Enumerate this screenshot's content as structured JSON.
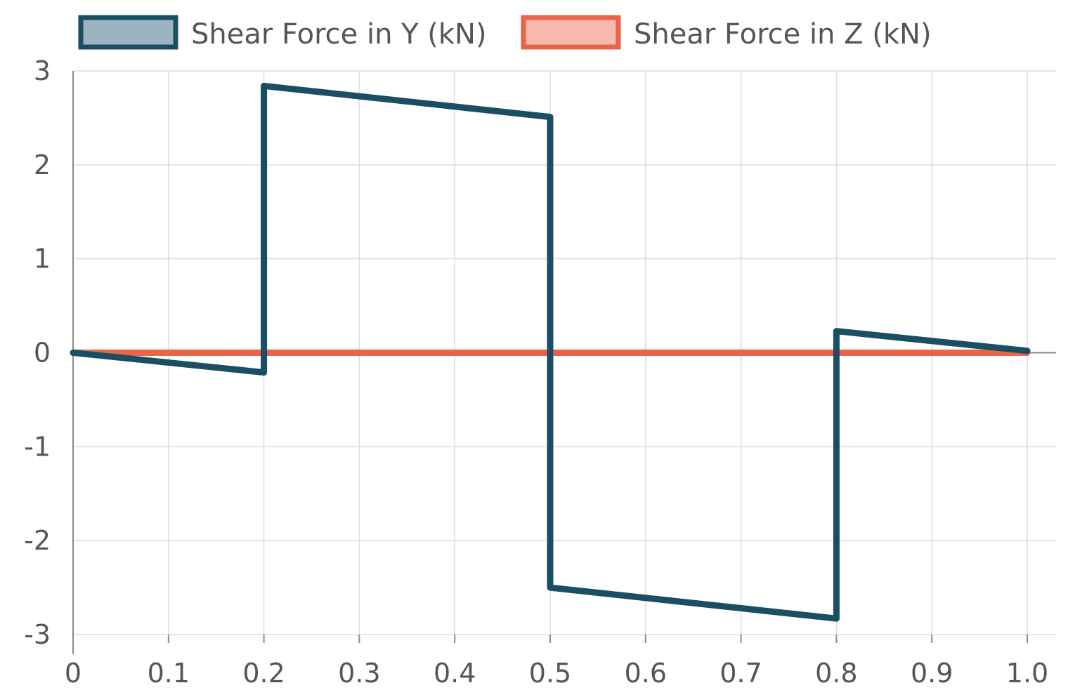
{
  "colors": {
    "series_y_stroke": "#1a4e63",
    "series_y_fill": "#9bb4c2",
    "series_z_stroke": "#e8654a",
    "series_z_fill": "#f8b8ab",
    "grid": "#dcdcdc",
    "axis": "#8a8a8a",
    "tick_text": "#555555"
  },
  "chart_data": {
    "type": "line",
    "title": "",
    "xlabel": "",
    "ylabel": "",
    "xlim": [
      0,
      1.0
    ],
    "ylim": [
      -3,
      3
    ],
    "grid": true,
    "legend_position": "top",
    "x_ticks": [
      {
        "value": 0,
        "label": "0"
      },
      {
        "value": 0.1,
        "label": "0.1"
      },
      {
        "value": 0.2,
        "label": "0.2"
      },
      {
        "value": 0.3,
        "label": "0.3"
      },
      {
        "value": 0.4,
        "label": "0.4"
      },
      {
        "value": 0.5,
        "label": "0.5"
      },
      {
        "value": 0.6,
        "label": "0.6"
      },
      {
        "value": 0.7,
        "label": "0.7"
      },
      {
        "value": 0.8,
        "label": "0.8"
      },
      {
        "value": 0.9,
        "label": "0.9"
      },
      {
        "value": 1.0,
        "label": "1.0"
      }
    ],
    "y_ticks": [
      {
        "value": 3,
        "label": "3"
      },
      {
        "value": 2,
        "label": "2"
      },
      {
        "value": 1,
        "label": "1"
      },
      {
        "value": 0,
        "label": "0"
      },
      {
        "value": -1,
        "label": "-1"
      },
      {
        "value": -2,
        "label": "-2"
      },
      {
        "value": -3,
        "label": "-3"
      }
    ],
    "series": [
      {
        "name": "Shear Force in Y (kN)",
        "x": [
          0,
          0.2,
          0.2,
          0.5,
          0.5,
          0.8,
          0.8,
          1.0
        ],
        "y": [
          0,
          -0.21,
          2.84,
          2.51,
          -2.5,
          -2.83,
          0.23,
          0.02
        ]
      },
      {
        "name": "Shear Force in Z (kN)",
        "x": [
          0,
          1.0
        ],
        "y": [
          0,
          0
        ]
      }
    ]
  }
}
